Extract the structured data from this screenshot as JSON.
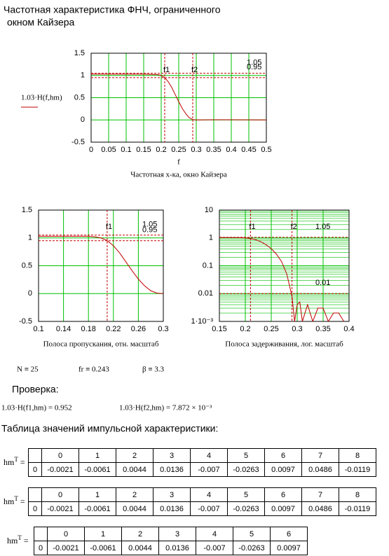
{
  "header": {
    "lines": [
      "Частотная характеристика ФНЧ, ограниченного",
      "окном Кайзера"
    ]
  },
  "chart_data": [
    {
      "type": "line",
      "xlabel": "f",
      "caption": "Частотная х-ка, окно Кайзера",
      "x": [
        0,
        0.05,
        0.1,
        0.15,
        0.19,
        0.2,
        0.21,
        0.22,
        0.23,
        0.24,
        0.25,
        0.26,
        0.27,
        0.28,
        0.29,
        0.3,
        0.35,
        0.4,
        0.45,
        0.5
      ],
      "series": [
        {
          "name": "1.03·H(f,hm)",
          "color": "#c00000",
          "values": [
            1.03,
            1.03,
            1.03,
            1.03,
            1.02,
            1.0,
            0.95,
            0.86,
            0.73,
            0.57,
            0.41,
            0.26,
            0.14,
            0.05,
            0.008,
            0,
            0.004,
            0.003,
            0.002,
            0
          ]
        }
      ],
      "xlim": [
        0,
        0.5
      ],
      "xticks": [
        0,
        0.05,
        0.1,
        0.15,
        0.2,
        0.25,
        0.3,
        0.35,
        0.4,
        0.45,
        0.5
      ],
      "ylim": [
        -0.5,
        1.5
      ],
      "yticks": [
        -0.5,
        0,
        0.5,
        1,
        1.5
      ],
      "hlines": [
        1.05,
        0.95
      ],
      "vlines": [
        {
          "value": 0.21,
          "label": "f1"
        },
        {
          "value": 0.29,
          "label": "f2"
        }
      ],
      "grid": true,
      "grid_color": "#00c000",
      "marker_color": "#c00000",
      "legend": true,
      "log_y": false
    },
    {
      "type": "line",
      "caption": "Полоса пропускания, отн. масштаб",
      "x": [
        0.1,
        0.14,
        0.18,
        0.19,
        0.2,
        0.21,
        0.22,
        0.23,
        0.24,
        0.25,
        0.26,
        0.27,
        0.28,
        0.29,
        0.3
      ],
      "series": [
        {
          "name": "1.03·H(f,hm)",
          "color": "#c00000",
          "values": [
            1.03,
            1.03,
            1.03,
            1.02,
            1.0,
            0.95,
            0.86,
            0.73,
            0.57,
            0.41,
            0.26,
            0.14,
            0.05,
            0.008,
            0
          ]
        }
      ],
      "xlim": [
        0.1,
        0.3
      ],
      "xticks": [
        0.1,
        0.14,
        0.18,
        0.22,
        0.26,
        0.3
      ],
      "ylim": [
        -0.5,
        1.5
      ],
      "yticks": [
        -0.5,
        0,
        0.5,
        1,
        1.5
      ],
      "hlines": [
        1.05,
        0.95
      ],
      "vlines": [
        {
          "value": 0.21,
          "label": "f1"
        }
      ],
      "grid": true,
      "grid_color": "#00c000",
      "marker_color": "#c00000",
      "legend": false,
      "log_y": false
    },
    {
      "type": "line",
      "caption": "Полоса задерживания, лог. масштаб",
      "x": [
        0.15,
        0.18,
        0.19,
        0.2,
        0.21,
        0.22,
        0.23,
        0.24,
        0.25,
        0.26,
        0.27,
        0.28,
        0.29,
        0.295,
        0.3,
        0.305,
        0.31,
        0.32,
        0.33,
        0.34,
        0.35,
        0.36,
        0.37,
        0.38,
        0.39
      ],
      "series": [
        {
          "name": "1.03·H(f,hm)",
          "color": "#c00000",
          "values": [
            1.03,
            1.03,
            1.02,
            1.0,
            0.95,
            0.86,
            0.73,
            0.57,
            0.41,
            0.26,
            0.14,
            0.05,
            0.008,
            0.001,
            0.004,
            0.005,
            0.001,
            0.004,
            0.001,
            0.003,
            0.003,
            0.001,
            0.002,
            0.002,
            0.001
          ]
        }
      ],
      "xlim": [
        0.15,
        0.4
      ],
      "xticks": [
        0.15,
        0.2,
        0.25,
        0.3,
        0.35,
        0.4
      ],
      "ylim": [
        0.001,
        10
      ],
      "yticks": [
        {
          "value": 0.001,
          "label": "1·10⁻³"
        },
        0.01,
        0.1,
        1,
        10
      ],
      "hlines": [
        1.05,
        0.01
      ],
      "vlines": [
        {
          "value": 0.21,
          "label": "f1"
        },
        {
          "value": 0.29,
          "label": "f2"
        }
      ],
      "grid": true,
      "minor_grid": true,
      "grid_color": "#00c000",
      "marker_color": "#c00000",
      "legend": false,
      "log_y": true
    }
  ],
  "params": [
    "N ≡ 25",
    "fr ≡ 0.243",
    "β ≡ 3.3"
  ],
  "check": {
    "title": "Проверка:",
    "items": [
      "1.03·H(f1,hm) = 0.952",
      "1.03·H(f2,hm) = 7.872 × 10⁻³"
    ]
  },
  "table_title": "Таблица значений импульсной характеристики:",
  "tables": [
    {
      "label": "hm",
      "superscript": "T",
      "operator": "=",
      "columns": [
        0,
        1,
        2,
        3,
        4,
        5,
        6,
        7,
        8
      ],
      "row_index": 0,
      "values": [
        -0.0021,
        -0.0061,
        0.0044,
        0.0136,
        -0.007,
        -0.0263,
        0.0097,
        0.0486,
        -0.0119
      ]
    },
    {
      "label": "hm",
      "superscript": "T",
      "operator": "=",
      "columns": [
        0,
        1,
        2,
        3,
        4,
        5,
        6,
        7,
        8
      ],
      "row_index": 0,
      "values": [
        -0.0021,
        -0.0061,
        0.0044,
        0.0136,
        -0.007,
        -0.0263,
        0.0097,
        0.0486,
        -0.0119
      ]
    },
    {
      "label": "hm",
      "superscript": "T",
      "operator": "=",
      "columns": [
        0,
        1,
        2,
        3,
        4,
        5,
        6
      ],
      "row_index": 0,
      "values": [
        -0.0021,
        -0.0061,
        0.0044,
        0.0136,
        -0.007,
        -0.0263,
        0.0097
      ]
    }
  ]
}
